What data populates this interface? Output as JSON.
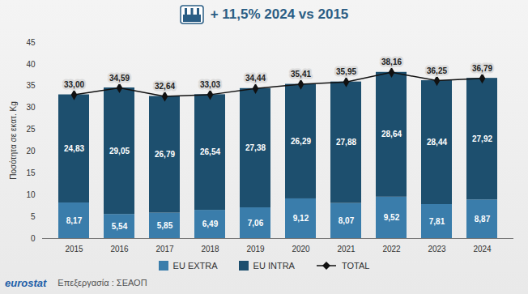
{
  "chart_data": {
    "type": "bar",
    "title": "+ 11,5% 2024 vs 2015",
    "y_label": "Ποσότητα σε εκατ. Kg",
    "annotations": [
      "eurostat",
      "Επεξεργασία : ΣΕΑΟΠ"
    ],
    "categories": [
      "2015",
      "2016",
      "2017",
      "2018",
      "2019",
      "2020",
      "2021",
      "2022",
      "2023",
      "2024"
    ],
    "series": [
      {
        "name": "EU EXTRA",
        "type": "bar",
        "color": "#3a7dab",
        "values": [
          8.17,
          5.54,
          5.85,
          6.49,
          7.06,
          9.12,
          8.07,
          9.52,
          7.81,
          8.87
        ],
        "value_labels": [
          "8,17",
          "5,54",
          "5,85",
          "6,49",
          "7,06",
          "9,12",
          "8,07",
          "9,52",
          "7,81",
          "8,87"
        ]
      },
      {
        "name": "EU INTRA",
        "type": "bar",
        "color": "#1d4f6e",
        "values": [
          24.83,
          29.05,
          26.79,
          26.54,
          27.38,
          26.29,
          27.88,
          28.64,
          28.44,
          27.92
        ],
        "value_labels": [
          "24,83",
          "29,05",
          "26,79",
          "26,54",
          "27,38",
          "26,29",
          "27,88",
          "28,64",
          "28,44",
          "27,92"
        ]
      },
      {
        "name": "TOTAL",
        "type": "line",
        "color": "#111111",
        "marker": "diamond",
        "values": [
          33.0,
          34.59,
          32.64,
          33.03,
          34.44,
          35.41,
          35.95,
          38.16,
          36.25,
          36.79
        ],
        "value_labels": [
          "33,00",
          "34,59",
          "32,64",
          "33,03",
          "34,44",
          "35,41",
          "35,95",
          "38,16",
          "36,25",
          "36,79"
        ]
      }
    ],
    "stacked": true,
    "data_labels": true,
    "grid": false,
    "legend": "bottom",
    "ylim": [
      0,
      45
    ],
    "yticks": [
      0,
      5,
      10,
      15,
      20,
      25,
      30,
      35,
      40,
      45
    ]
  }
}
